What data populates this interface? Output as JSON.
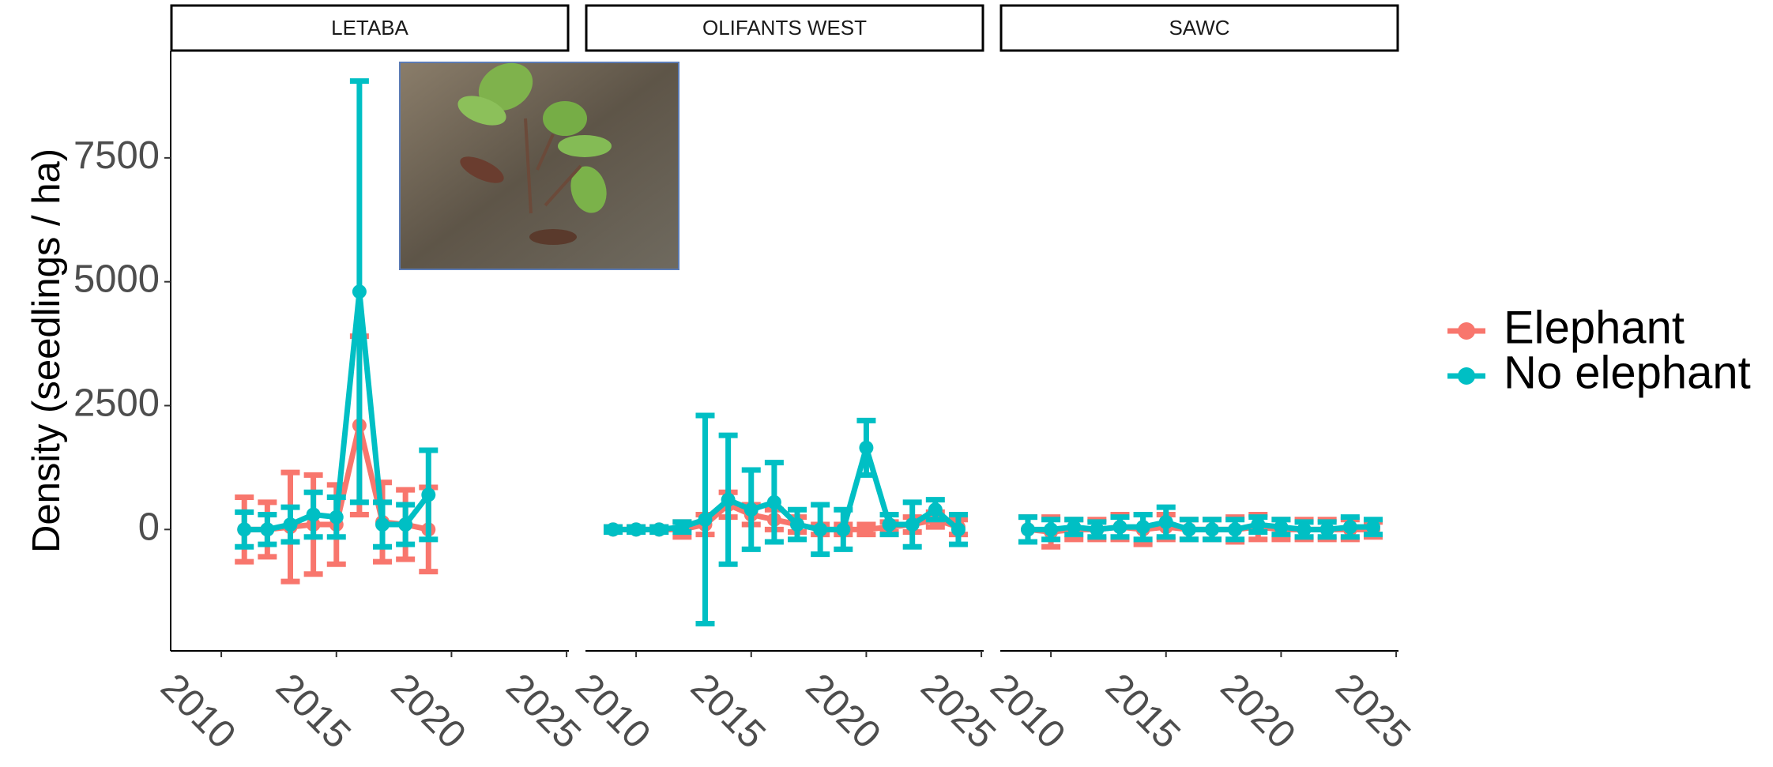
{
  "chart_data": {
    "type": "line",
    "ylabel": "Density (seedlings / ha)",
    "ylim": [
      -2450,
      9650
    ],
    "yticks": [
      0,
      2500,
      5000,
      7500
    ],
    "xlim": [
      2007.8,
      2025.1
    ],
    "xticks": [
      2010,
      2015,
      2020,
      2025
    ],
    "series": [
      {
        "name": "Elephant",
        "color": "#F8766D"
      },
      {
        "name": "No elephant",
        "color": "#00BFC4"
      }
    ],
    "facets": [
      {
        "title": "LETABA",
        "x": [
          2011,
          2012,
          2013,
          2014,
          2015,
          2016,
          2017,
          2018,
          2019
        ],
        "series": [
          {
            "values": [
              0,
              0,
              50,
              100,
              100,
              2100,
              150,
              100,
              0
            ],
            "errors": [
              650,
              550,
              1100,
              1000,
              800,
              1800,
              800,
              700,
              850
            ]
          },
          {
            "values": [
              0,
              0,
              100,
              300,
              250,
              4800,
              100,
              100,
              700
            ],
            "errors": [
              350,
              300,
              350,
              450,
              400,
              4250,
              450,
              400,
              900
            ]
          }
        ]
      },
      {
        "title": "OLIFANTS WEST",
        "x": [
          2009,
          2010,
          2011,
          2012,
          2013,
          2014,
          2015,
          2016,
          2017,
          2018,
          2019,
          2020,
          2021,
          2022,
          2023,
          2024
        ],
        "series": [
          {
            "values": [
              0,
              0,
              0,
              0,
              100,
              500,
              300,
              200,
              100,
              0,
              0,
              0,
              50,
              100,
              200,
              50
            ],
            "errors": [
              50,
              50,
              50,
              150,
              200,
              250,
              200,
              200,
              150,
              100,
              100,
              100,
              100,
              150,
              150,
              150
            ]
          },
          {
            "values": [
              0,
              0,
              0,
              50,
              200,
              600,
              400,
              550,
              100,
              0,
              0,
              1650,
              100,
              100,
              400,
              0
            ],
            "errors": [
              50,
              50,
              50,
              100,
              2100,
              1300,
              800,
              800,
              300,
              500,
              400,
              550,
              200,
              450,
              200,
              300
            ]
          }
        ]
      },
      {
        "title": "SAWC",
        "x": [
          2009,
          2010,
          2011,
          2012,
          2013,
          2014,
          2015,
          2016,
          2017,
          2018,
          2019,
          2020,
          2021,
          2022,
          2023,
          2024
        ],
        "series": [
          {
            "values": [
              0,
              -50,
              0,
              0,
              50,
              0,
              50,
              0,
              0,
              0,
              50,
              0,
              0,
              0,
              0,
              0
            ],
            "errors": [
              250,
              300,
              200,
              200,
              250,
              300,
              250,
              200,
              200,
              250,
              250,
              200,
              200,
              200,
              200,
              150
            ]
          },
          {
            "values": [
              0,
              0,
              50,
              0,
              50,
              50,
              150,
              0,
              0,
              0,
              100,
              50,
              0,
              0,
              50,
              50
            ],
            "errors": [
              250,
              200,
              150,
              150,
              200,
              250,
              300,
              200,
              200,
              200,
              150,
              150,
              150,
              150,
              200,
              150
            ]
          }
        ]
      }
    ]
  }
}
